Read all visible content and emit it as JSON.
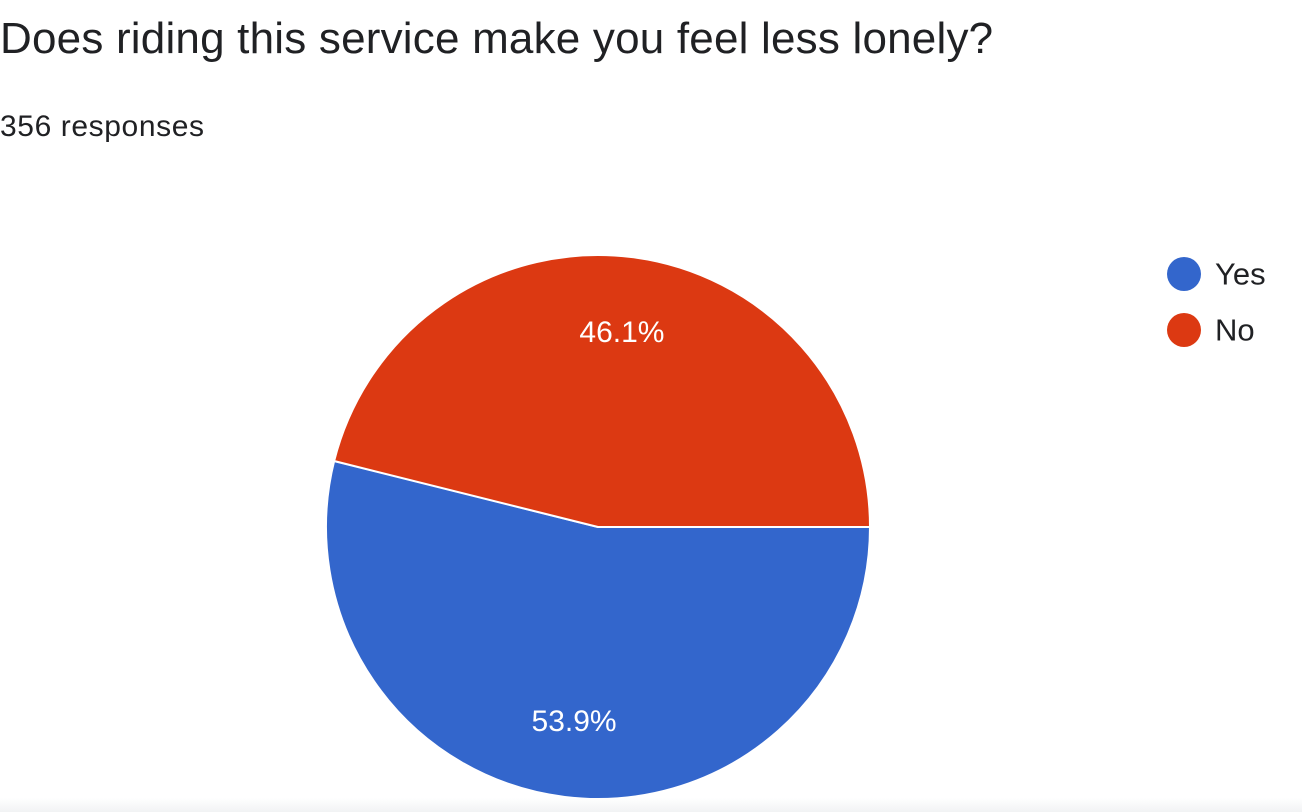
{
  "question": {
    "title": "Does riding this service make you feel less lonely?",
    "responses": "356 responses"
  },
  "chart_data": {
    "type": "pie",
    "title": "Does riding this service make you feel less lonely?",
    "total_responses": 356,
    "categories": [
      "Yes",
      "No"
    ],
    "values": [
      53.9,
      46.1
    ],
    "labels": [
      "53.9%",
      "46.1%"
    ],
    "colors": [
      "#3366CC",
      "#DC3912"
    ],
    "legend_position": "right"
  }
}
